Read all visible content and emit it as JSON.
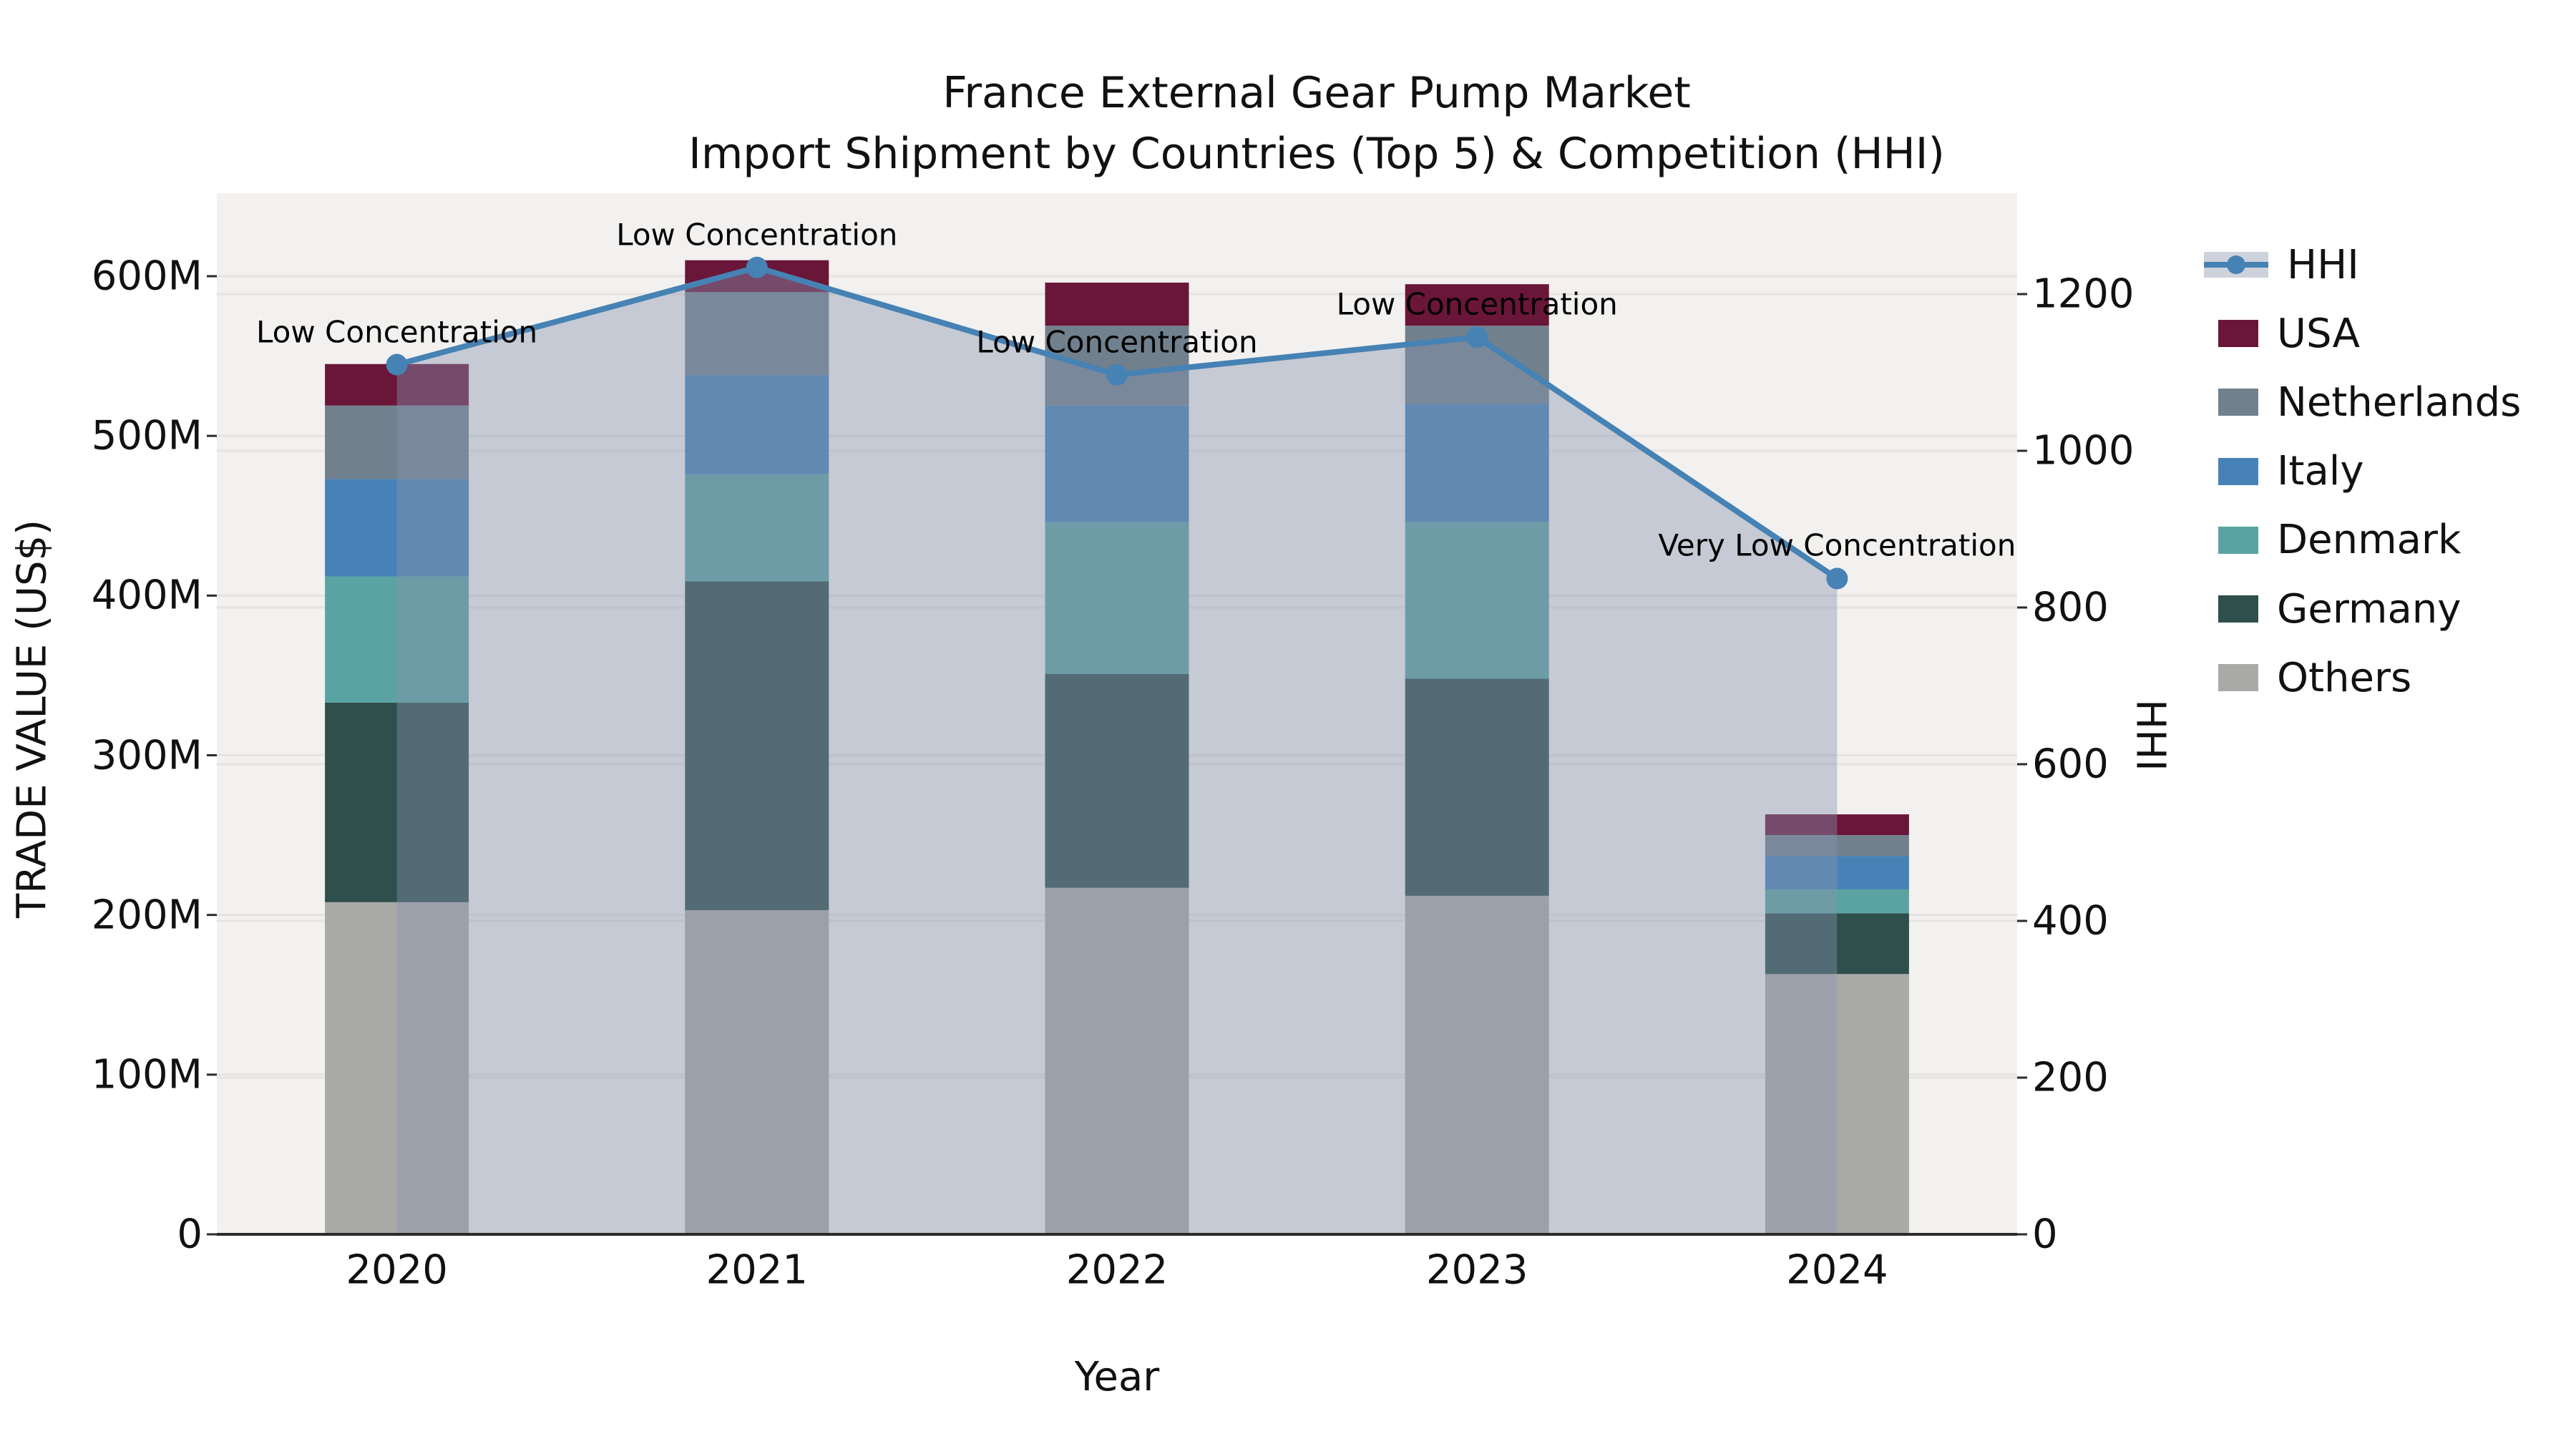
{
  "title": {
    "line1": "France External Gear Pump Market",
    "line2": "Import Shipment by Countries (Top 5) & Competition (HHI)"
  },
  "axes": {
    "x_label": "Year",
    "y_left_label": "TRADE VALUE (US$)",
    "y_right_label": "HHI",
    "y_left_ticks": {
      "values": [
        0,
        100,
        200,
        300,
        400,
        500,
        600
      ],
      "labels": [
        "0",
        "100M",
        "200M",
        "300M",
        "400M",
        "500M",
        "600M"
      ]
    },
    "y_right_ticks": {
      "values": [
        0,
        200,
        400,
        600,
        800,
        1000,
        1200
      ],
      "labels": [
        "0",
        "200",
        "400",
        "600",
        "800",
        "1000",
        "1200"
      ]
    }
  },
  "chart_data": {
    "type": "bar",
    "subtype": "stacked-bars-with-line-overlay",
    "categories": [
      "2020",
      "2021",
      "2022",
      "2023",
      "2024"
    ],
    "value_unit": "US$ millions (trade value), index (HHI)",
    "stack_order_note": "series listed top-of-stack first; drawn bottom-up in reverse",
    "series": [
      {
        "name": "USA",
        "color": "#6a1639",
        "values": [
          26,
          20,
          27,
          26,
          13
        ]
      },
      {
        "name": "Netherlands",
        "color": "#71808d",
        "values": [
          46,
          52,
          50,
          49,
          13
        ]
      },
      {
        "name": "Italy",
        "color": "#4782b6",
        "values": [
          61,
          62,
          73,
          74,
          21
        ]
      },
      {
        "name": "Denmark",
        "color": "#5aa3a2",
        "values": [
          79,
          67,
          95,
          98,
          15
        ]
      },
      {
        "name": "Germany",
        "color": "#2e4f4b",
        "values": [
          125,
          206,
          134,
          136,
          38
        ]
      },
      {
        "name": "Others",
        "color": "#a9a9a7",
        "values": [
          208,
          203,
          217,
          212,
          163
        ]
      }
    ],
    "bar_totals": [
      545,
      610,
      596,
      595,
      263
    ],
    "line_series": {
      "name": "HHI",
      "color": "#4682b4",
      "area_fill": "rgba(135,148,175,0.42)",
      "values": [
        1110,
        1234,
        1097,
        1145,
        837
      ],
      "annotations": [
        "Low Concentration",
        "Low Concentration",
        "Low Concentration",
        "Low Concentration",
        "Very Low Concentration"
      ]
    },
    "ylim_left": [
      0,
      650
    ],
    "ylim_right": [
      0,
      1300
    ],
    "grid": true,
    "legend_position": "right"
  },
  "legend": {
    "entries": [
      "HHI",
      "USA",
      "Netherlands",
      "Italy",
      "Denmark",
      "Germany",
      "Others"
    ]
  },
  "style": {
    "plot_background": "#f2f1ef",
    "grid_color": "rgba(0,0,0,0.05)",
    "axis_line_color": "#2b2b2b",
    "text_color": "#111111"
  }
}
